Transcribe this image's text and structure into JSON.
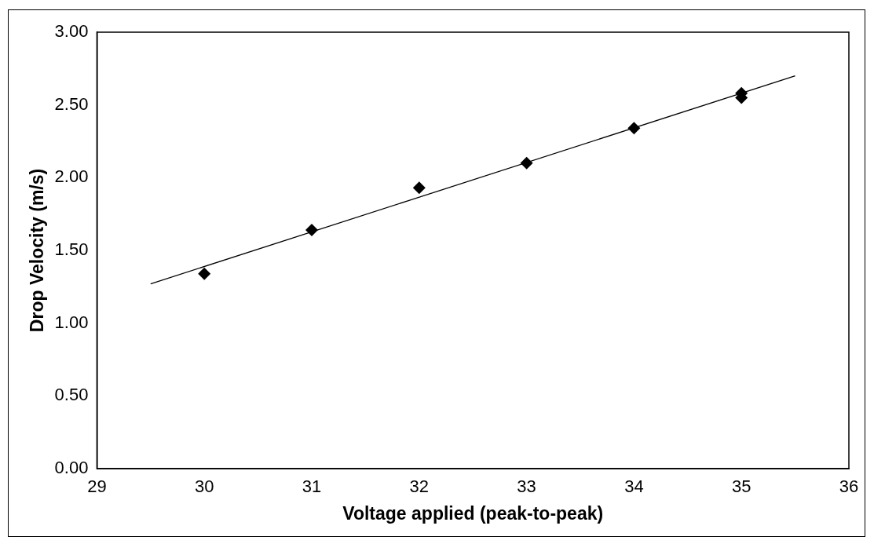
{
  "chart_data": {
    "type": "scatter",
    "xlabel": "Voltage applied (peak-to-peak)",
    "ylabel": "Drop Velocity (m/s)",
    "xlim": [
      29,
      36
    ],
    "xticks": [
      29,
      30,
      31,
      32,
      33,
      34,
      35,
      36
    ],
    "ylim": [
      0,
      3
    ],
    "yticks": [
      {
        "value": 0,
        "label": "0.00"
      },
      {
        "value": 0.5,
        "label": "0.50"
      },
      {
        "value": 1,
        "label": "1.00"
      },
      {
        "value": 1.5,
        "label": "1.50"
      },
      {
        "value": 2,
        "label": "2.00"
      },
      {
        "value": 2.5,
        "label": "2.50"
      },
      {
        "value": 3,
        "label": "3.00"
      }
    ],
    "grid": false,
    "legend": false,
    "marker": "diamond",
    "series": [
      {
        "type": "scatter",
        "color": "#000000",
        "x": [
          30,
          31,
          32,
          33,
          34,
          35,
          35
        ],
        "values": [
          1.34,
          1.64,
          1.93,
          2.1,
          2.34,
          2.58,
          2.55
        ]
      },
      {
        "type": "line",
        "color": "#000000",
        "x": [
          29.5,
          35.5
        ],
        "values": [
          1.27,
          2.7
        ],
        "marker": "none",
        "line_style": "solid"
      }
    ]
  }
}
